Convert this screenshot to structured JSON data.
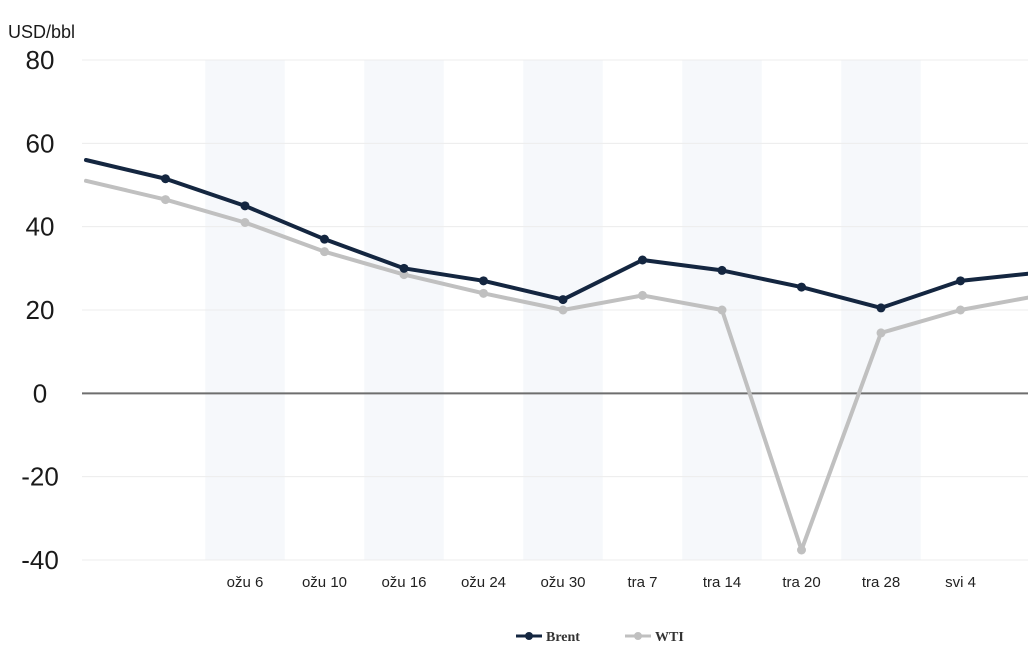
{
  "chart_data": {
    "type": "line",
    "title": "",
    "ylabel": "USD/bbl",
    "xlabel": "",
    "ylim": [
      -40,
      80
    ],
    "y_ticks": [
      80,
      60,
      40,
      20,
      0,
      -20,
      -40
    ],
    "y_tick_labels": [
      "80",
      "60",
      "40",
      "20",
      "0",
      "-20",
      "-40"
    ],
    "x_tick_labels": [
      "ožu 6",
      "ožu 10",
      "ožu 16",
      "ožu 24",
      "ožu 30",
      "tra 7",
      "tra 14",
      "tra 20",
      "tra 28",
      "svi 4"
    ],
    "grid": true,
    "legend_position": "bottom-center",
    "categories": [
      "",
      "",
      "ožu 6",
      "ožu 10",
      "ožu 16",
      "ožu 24",
      "ožu 30",
      "tra 7",
      "tra 14",
      "tra 20",
      "tra 28",
      "svi 4",
      ""
    ],
    "series": [
      {
        "name": "Brent",
        "color": "#142640",
        "values": [
          56,
          51.5,
          45,
          37,
          30,
          27,
          22.5,
          32,
          29.5,
          25.5,
          20.5,
          27,
          29
        ]
      },
      {
        "name": "WTI",
        "color": "#c0c0c0",
        "values": [
          51,
          46.5,
          41,
          34,
          28.5,
          24,
          20,
          23.5,
          20,
          -37.6,
          14.5,
          20,
          23.5
        ]
      }
    ]
  }
}
